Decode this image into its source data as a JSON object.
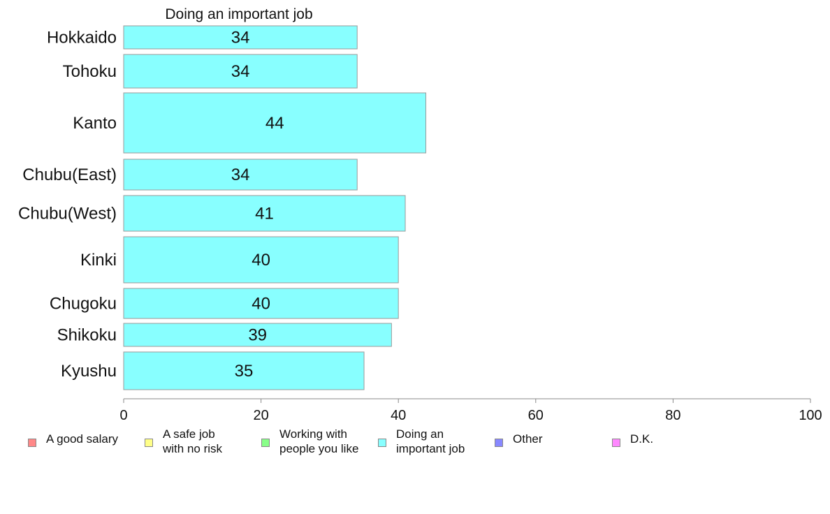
{
  "chart_data": {
    "type": "bar",
    "orientation": "horizontal",
    "title": "Doing an important job",
    "categories": [
      "Hokkaido",
      "Tohoku",
      "Kanto",
      "Chubu(East)",
      "Chubu(West)",
      "Kinki",
      "Chugoku",
      "Shikoku",
      "Kyushu"
    ],
    "values": [
      34,
      34,
      44,
      34,
      41,
      40,
      40,
      39,
      35
    ],
    "value_labels": [
      "34",
      "34",
      "44",
      "34",
      "41",
      "40",
      "40",
      "39",
      "35"
    ],
    "xlim": [
      0,
      100
    ],
    "xticks": [
      "0",
      "20",
      "40",
      "60",
      "80",
      "100"
    ],
    "grid": false,
    "bar_color": "#88ffff",
    "bar_border": "#9a9a9a",
    "legend_position": "bottom",
    "legend": [
      {
        "label": "A good salary",
        "color": "#ff8888"
      },
      {
        "label": "A safe job\nwith no risk",
        "color": "#ffff88"
      },
      {
        "label": "Working with\npeople you like",
        "color": "#88ff88"
      },
      {
        "label": "Doing an\nimportant job",
        "color": "#88ffff"
      },
      {
        "label": "Other",
        "color": "#8888ff"
      },
      {
        "label": "D.K.",
        "color": "#ff88ff"
      }
    ]
  }
}
